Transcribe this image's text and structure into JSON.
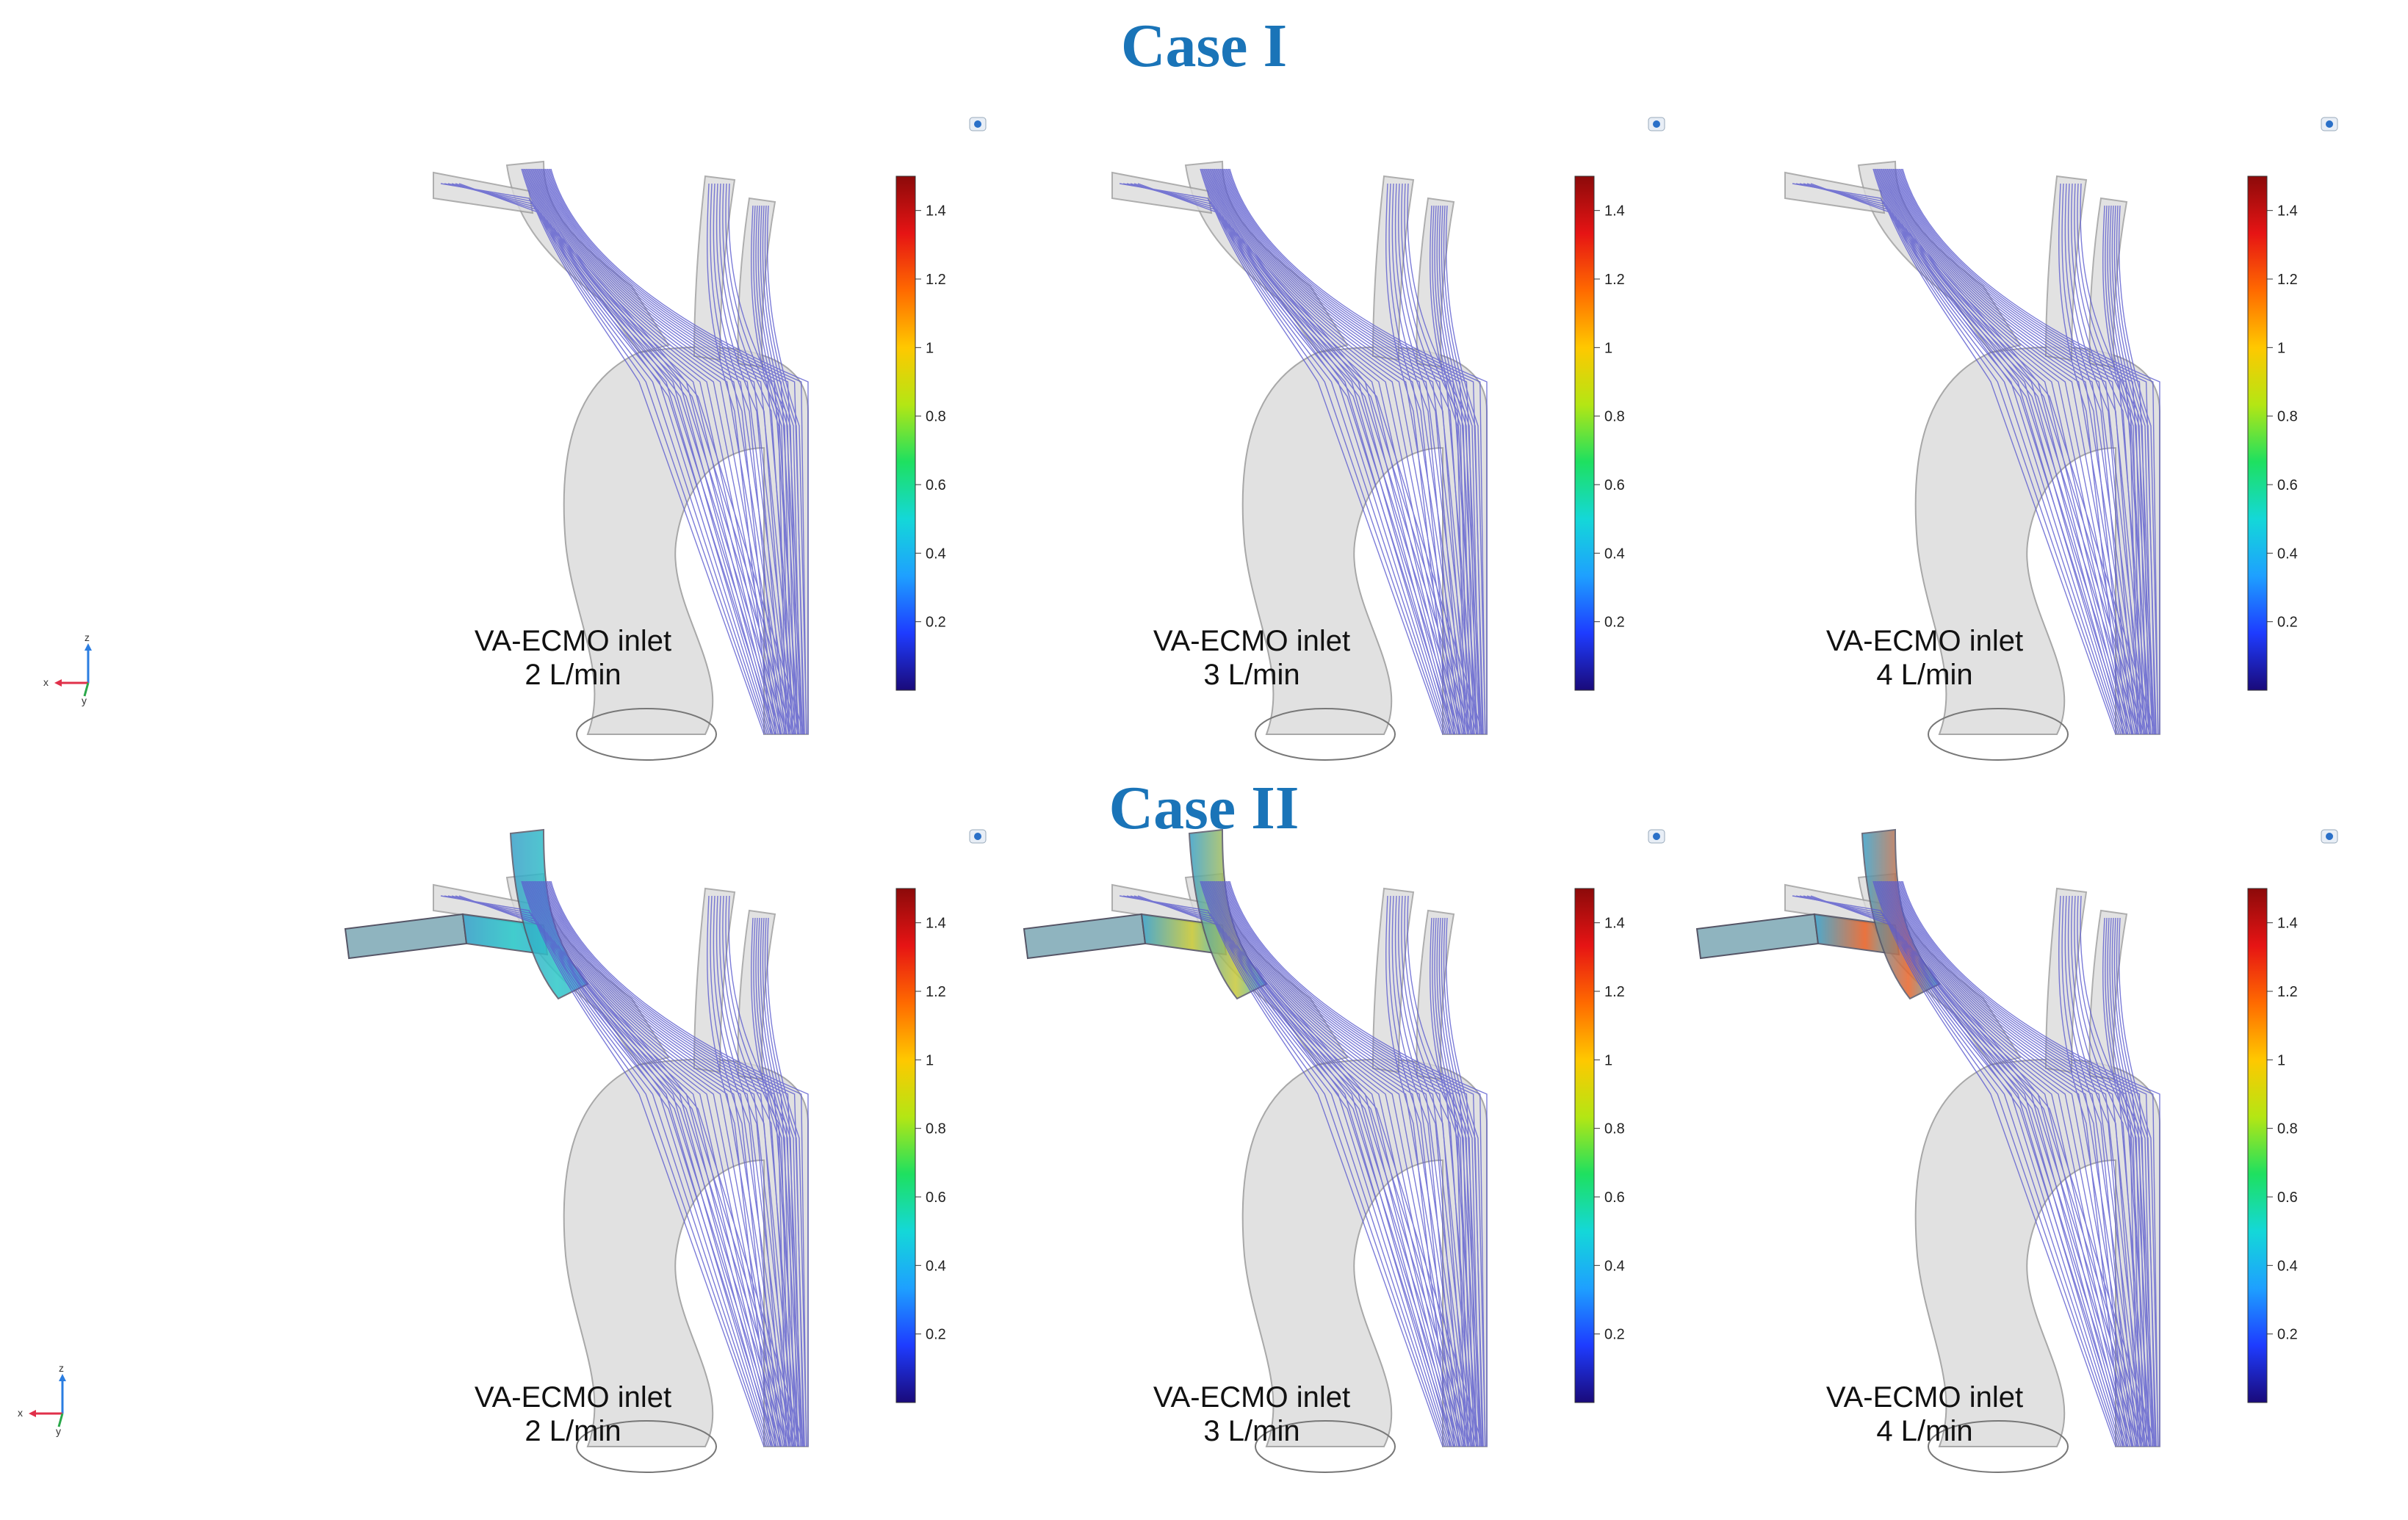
{
  "cases": [
    {
      "title": "Case I",
      "panels": [
        {
          "caption_line1": "VA-ECMO inlet",
          "caption_line2": "2 L/min",
          "ecmo_cannula": false
        },
        {
          "caption_line1": "VA-ECMO inlet",
          "caption_line2": "3 L/min",
          "ecmo_cannula": false
        },
        {
          "caption_line1": "VA-ECMO inlet",
          "caption_line2": "4 L/min",
          "ecmo_cannula": false
        }
      ]
    },
    {
      "title": "Case II",
      "panels": [
        {
          "caption_line1": "VA-ECMO inlet",
          "caption_line2": "2 L/min",
          "ecmo_cannula": true,
          "jet_level": 0.35
        },
        {
          "caption_line1": "VA-ECMO inlet",
          "caption_line2": "3 L/min",
          "ecmo_cannula": true,
          "jet_level": 0.65
        },
        {
          "caption_line1": "VA-ECMO inlet",
          "caption_line2": "4 L/min",
          "ecmo_cannula": true,
          "jet_level": 0.9
        }
      ]
    }
  ],
  "colorbar": {
    "ticks": [
      "0.2",
      "0.4",
      "0.6",
      "0.8",
      "1",
      "1.2",
      "1.4"
    ],
    "min": 0,
    "max": 1.5,
    "colors": [
      "#1a0a7a",
      "#1e3cff",
      "#1ea0ff",
      "#14d8d8",
      "#1ee060",
      "#b4e614",
      "#ffc800",
      "#ff6a00",
      "#e61414",
      "#8c0a0a"
    ]
  },
  "axes_labels": {
    "z": "z",
    "x": "x",
    "y": "y"
  },
  "colors": {
    "title": "#1a74b8",
    "vessel_fill": "#dcdcdc",
    "vessel_stroke": "#9a9a9a",
    "streamline": "#5c5ccf"
  }
}
